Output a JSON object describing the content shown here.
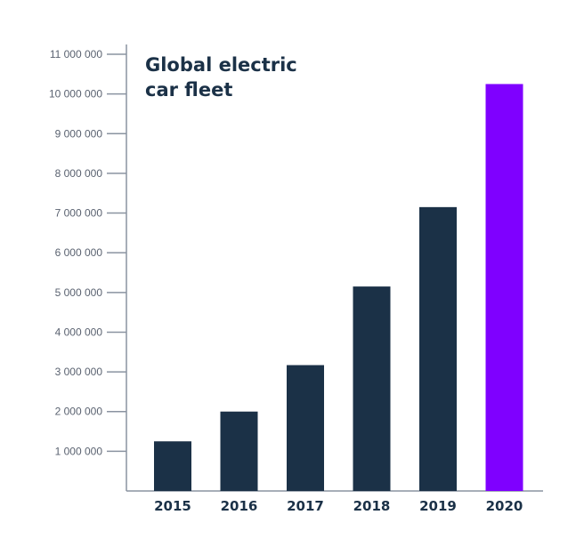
{
  "chart_data": {
    "type": "bar",
    "title_lines": [
      "Global electric",
      "car fleet"
    ],
    "categories": [
      "2015",
      "2016",
      "2017",
      "2018",
      "2019",
      "2020"
    ],
    "values": [
      1250000,
      2000000,
      3170000,
      5150000,
      7150000,
      10250000
    ],
    "bar_colors": [
      "#1b3147",
      "#1b3147",
      "#1b3147",
      "#1b3147",
      "#1b3147",
      "#7f00ff"
    ],
    "ylim": [
      0,
      11000000
    ],
    "yticks": [
      1000000,
      2000000,
      3000000,
      4000000,
      5000000,
      6000000,
      7000000,
      8000000,
      9000000,
      10000000,
      11000000
    ],
    "ytick_labels": [
      "1 000 000",
      "2 000 000",
      "3 000 000",
      "4 000 000",
      "5 000 000",
      "6 000 000",
      "7 000 000",
      "8 000 000",
      "9 000 000",
      "10 000 000",
      "11 000 000"
    ],
    "xlabel": "",
    "ylabel": "",
    "grid": false
  }
}
